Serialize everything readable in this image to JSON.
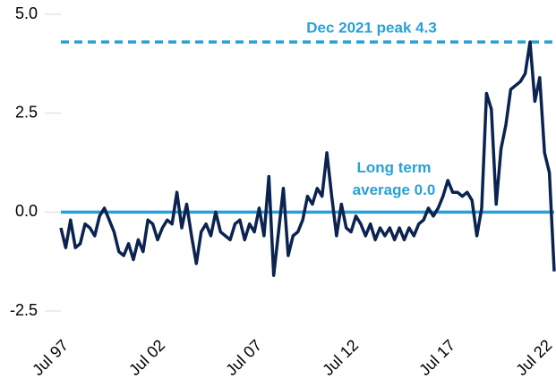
{
  "chart_data": {
    "type": "line",
    "x": [
      "1997-07",
      "1997-10",
      "1998-01",
      "1998-04",
      "1998-07",
      "1998-10",
      "1999-01",
      "1999-04",
      "1999-07",
      "1999-10",
      "2000-01",
      "2000-04",
      "2000-07",
      "2000-10",
      "2001-01",
      "2001-04",
      "2001-07",
      "2001-10",
      "2002-01",
      "2002-04",
      "2002-07",
      "2002-10",
      "2003-01",
      "2003-04",
      "2003-07",
      "2003-10",
      "2004-01",
      "2004-04",
      "2004-07",
      "2004-10",
      "2005-01",
      "2005-04",
      "2005-07",
      "2005-10",
      "2006-01",
      "2006-04",
      "2006-07",
      "2006-10",
      "2007-01",
      "2007-04",
      "2007-07",
      "2007-10",
      "2008-01",
      "2008-04",
      "2008-07",
      "2008-10",
      "2009-01",
      "2009-04",
      "2009-07",
      "2009-10",
      "2010-01",
      "2010-04",
      "2010-07",
      "2010-10",
      "2011-01",
      "2011-04",
      "2011-07",
      "2011-10",
      "2012-01",
      "2012-04",
      "2012-07",
      "2012-10",
      "2013-01",
      "2013-04",
      "2013-07",
      "2013-10",
      "2014-01",
      "2014-04",
      "2014-07",
      "2014-10",
      "2015-01",
      "2015-04",
      "2015-07",
      "2015-10",
      "2016-01",
      "2016-04",
      "2016-07",
      "2016-10",
      "2017-01",
      "2017-04",
      "2017-07",
      "2017-10",
      "2018-01",
      "2018-04",
      "2018-07",
      "2018-10",
      "2019-01",
      "2019-04",
      "2019-07",
      "2019-10",
      "2020-01",
      "2020-04",
      "2020-07",
      "2020-10",
      "2021-01",
      "2021-04",
      "2021-07",
      "2021-10",
      "2022-01",
      "2022-04",
      "2022-07",
      "2022-10",
      "2023-01"
    ],
    "series": [
      {
        "color": "#0b2350",
        "values": [
          -0.4,
          -0.9,
          -0.2,
          -0.9,
          -0.8,
          -0.3,
          -0.4,
          -0.6,
          -0.1,
          0.1,
          -0.2,
          -0.5,
          -1.0,
          -1.1,
          -0.8,
          -1.2,
          -0.7,
          -1.0,
          -0.2,
          -0.3,
          -0.7,
          -0.4,
          -0.2,
          -0.3,
          0.5,
          -0.4,
          0.2,
          -0.6,
          -1.3,
          -0.5,
          -0.3,
          -0.6,
          0.0,
          -0.5,
          -0.6,
          -0.7,
          -0.3,
          -0.2,
          -0.7,
          -0.3,
          -0.5,
          0.1,
          -0.6,
          0.9,
          -1.6,
          -0.5,
          0.6,
          -1.1,
          -0.6,
          -0.5,
          -0.2,
          0.4,
          0.2,
          0.6,
          0.4,
          1.5,
          0.4,
          -0.6,
          0.2,
          -0.4,
          -0.5,
          -0.1,
          -0.3,
          -0.6,
          -0.3,
          -0.7,
          -0.4,
          -0.6,
          -0.4,
          -0.7,
          -0.4,
          -0.7,
          -0.4,
          -0.6,
          -0.3,
          -0.2,
          0.1,
          -0.1,
          0.1,
          0.4,
          0.8,
          0.5,
          0.5,
          0.4,
          0.5,
          0.3,
          -0.6,
          0.1,
          3.0,
          2.6,
          0.2,
          1.6,
          2.2,
          3.1,
          3.2,
          3.3,
          3.5,
          4.3,
          2.8,
          3.4,
          1.5,
          1.0,
          -1.5
        ]
      }
    ],
    "xlim": [
      "1997-07",
      "2023-01"
    ],
    "xticks": [
      {
        "value": "1997-07",
        "label": "Jul 97"
      },
      {
        "value": "2002-07",
        "label": "Jul 02"
      },
      {
        "value": "2007-07",
        "label": "Jul 07"
      },
      {
        "value": "2012-07",
        "label": "Jul 12"
      },
      {
        "value": "2017-07",
        "label": "Jul 17"
      },
      {
        "value": "2022-07",
        "label": "Jul 22"
      }
    ],
    "ylim": [
      -2.5,
      5
    ],
    "yticks": [
      {
        "value": 5,
        "label": "5.0"
      },
      {
        "value": 2.5,
        "label": "2.5"
      },
      {
        "value": 0,
        "label": "0.0"
      },
      {
        "value": -2.5,
        "label": "-2.5"
      }
    ],
    "grid": false,
    "reference_lines": [
      {
        "value": 4.3,
        "color": "#29a0d8",
        "dashed": true,
        "label": [
          "Dec 2021 peak 4.3"
        ]
      },
      {
        "value": 0,
        "color": "#29a0d8",
        "dashed": false,
        "label": [
          "Long term",
          "average 0.0"
        ]
      }
    ]
  }
}
